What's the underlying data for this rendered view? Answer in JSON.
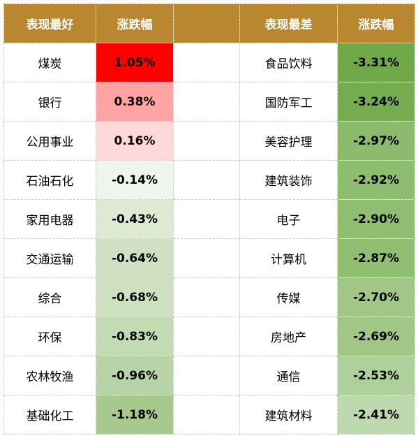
{
  "headers": {
    "best": "表现最好",
    "best_change": "涨跌幅",
    "worst": "表现最差",
    "worst_change": "涨跌幅"
  },
  "best": [
    {
      "name": "煤炭",
      "change": "1.05%",
      "color": "#ff0000"
    },
    {
      "name": "银行",
      "change": "0.38%",
      "color": "#ffa3a3"
    },
    {
      "name": "公用事业",
      "change": "0.16%",
      "color": "#ffd9d9"
    },
    {
      "name": "石油石化",
      "change": "-0.14%",
      "color": "#f0f5ec"
    },
    {
      "name": "家用电器",
      "change": "-0.43%",
      "color": "#dde9d3"
    },
    {
      "name": "交通运输",
      "change": "-0.64%",
      "color": "#d0e1c3"
    },
    {
      "name": "综合",
      "change": "-0.68%",
      "color": "#cde0c0"
    },
    {
      "name": "环保",
      "change": "-0.83%",
      "color": "#c3dab3"
    },
    {
      "name": "农林牧渔",
      "change": "-0.96%",
      "color": "#b8d3a5"
    },
    {
      "name": "基础化工",
      "change": "-1.18%",
      "color": "#a6c98c"
    }
  ],
  "worst": [
    {
      "name": "食品饮料",
      "change": "-3.31%",
      "color": "#70a94a"
    },
    {
      "name": "国防军工",
      "change": "-3.24%",
      "color": "#74ac4f"
    },
    {
      "name": "美容护理",
      "change": "-2.97%",
      "color": "#8bbb6b"
    },
    {
      "name": "建筑装饰",
      "change": "-2.92%",
      "color": "#8dbd6e"
    },
    {
      "name": "电子",
      "change": "-2.90%",
      "color": "#8fbe70"
    },
    {
      "name": "计算机",
      "change": "-2.87%",
      "color": "#91bf72"
    },
    {
      "name": "传媒",
      "change": "-2.70%",
      "color": "#a0c786"
    },
    {
      "name": "房地产",
      "change": "-2.69%",
      "color": "#a1c787"
    },
    {
      "name": "通信",
      "change": "-2.53%",
      "color": "#aed09a"
    },
    {
      "name": "建筑材料",
      "change": "-2.41%",
      "color": "#bfd9ae"
    }
  ]
}
